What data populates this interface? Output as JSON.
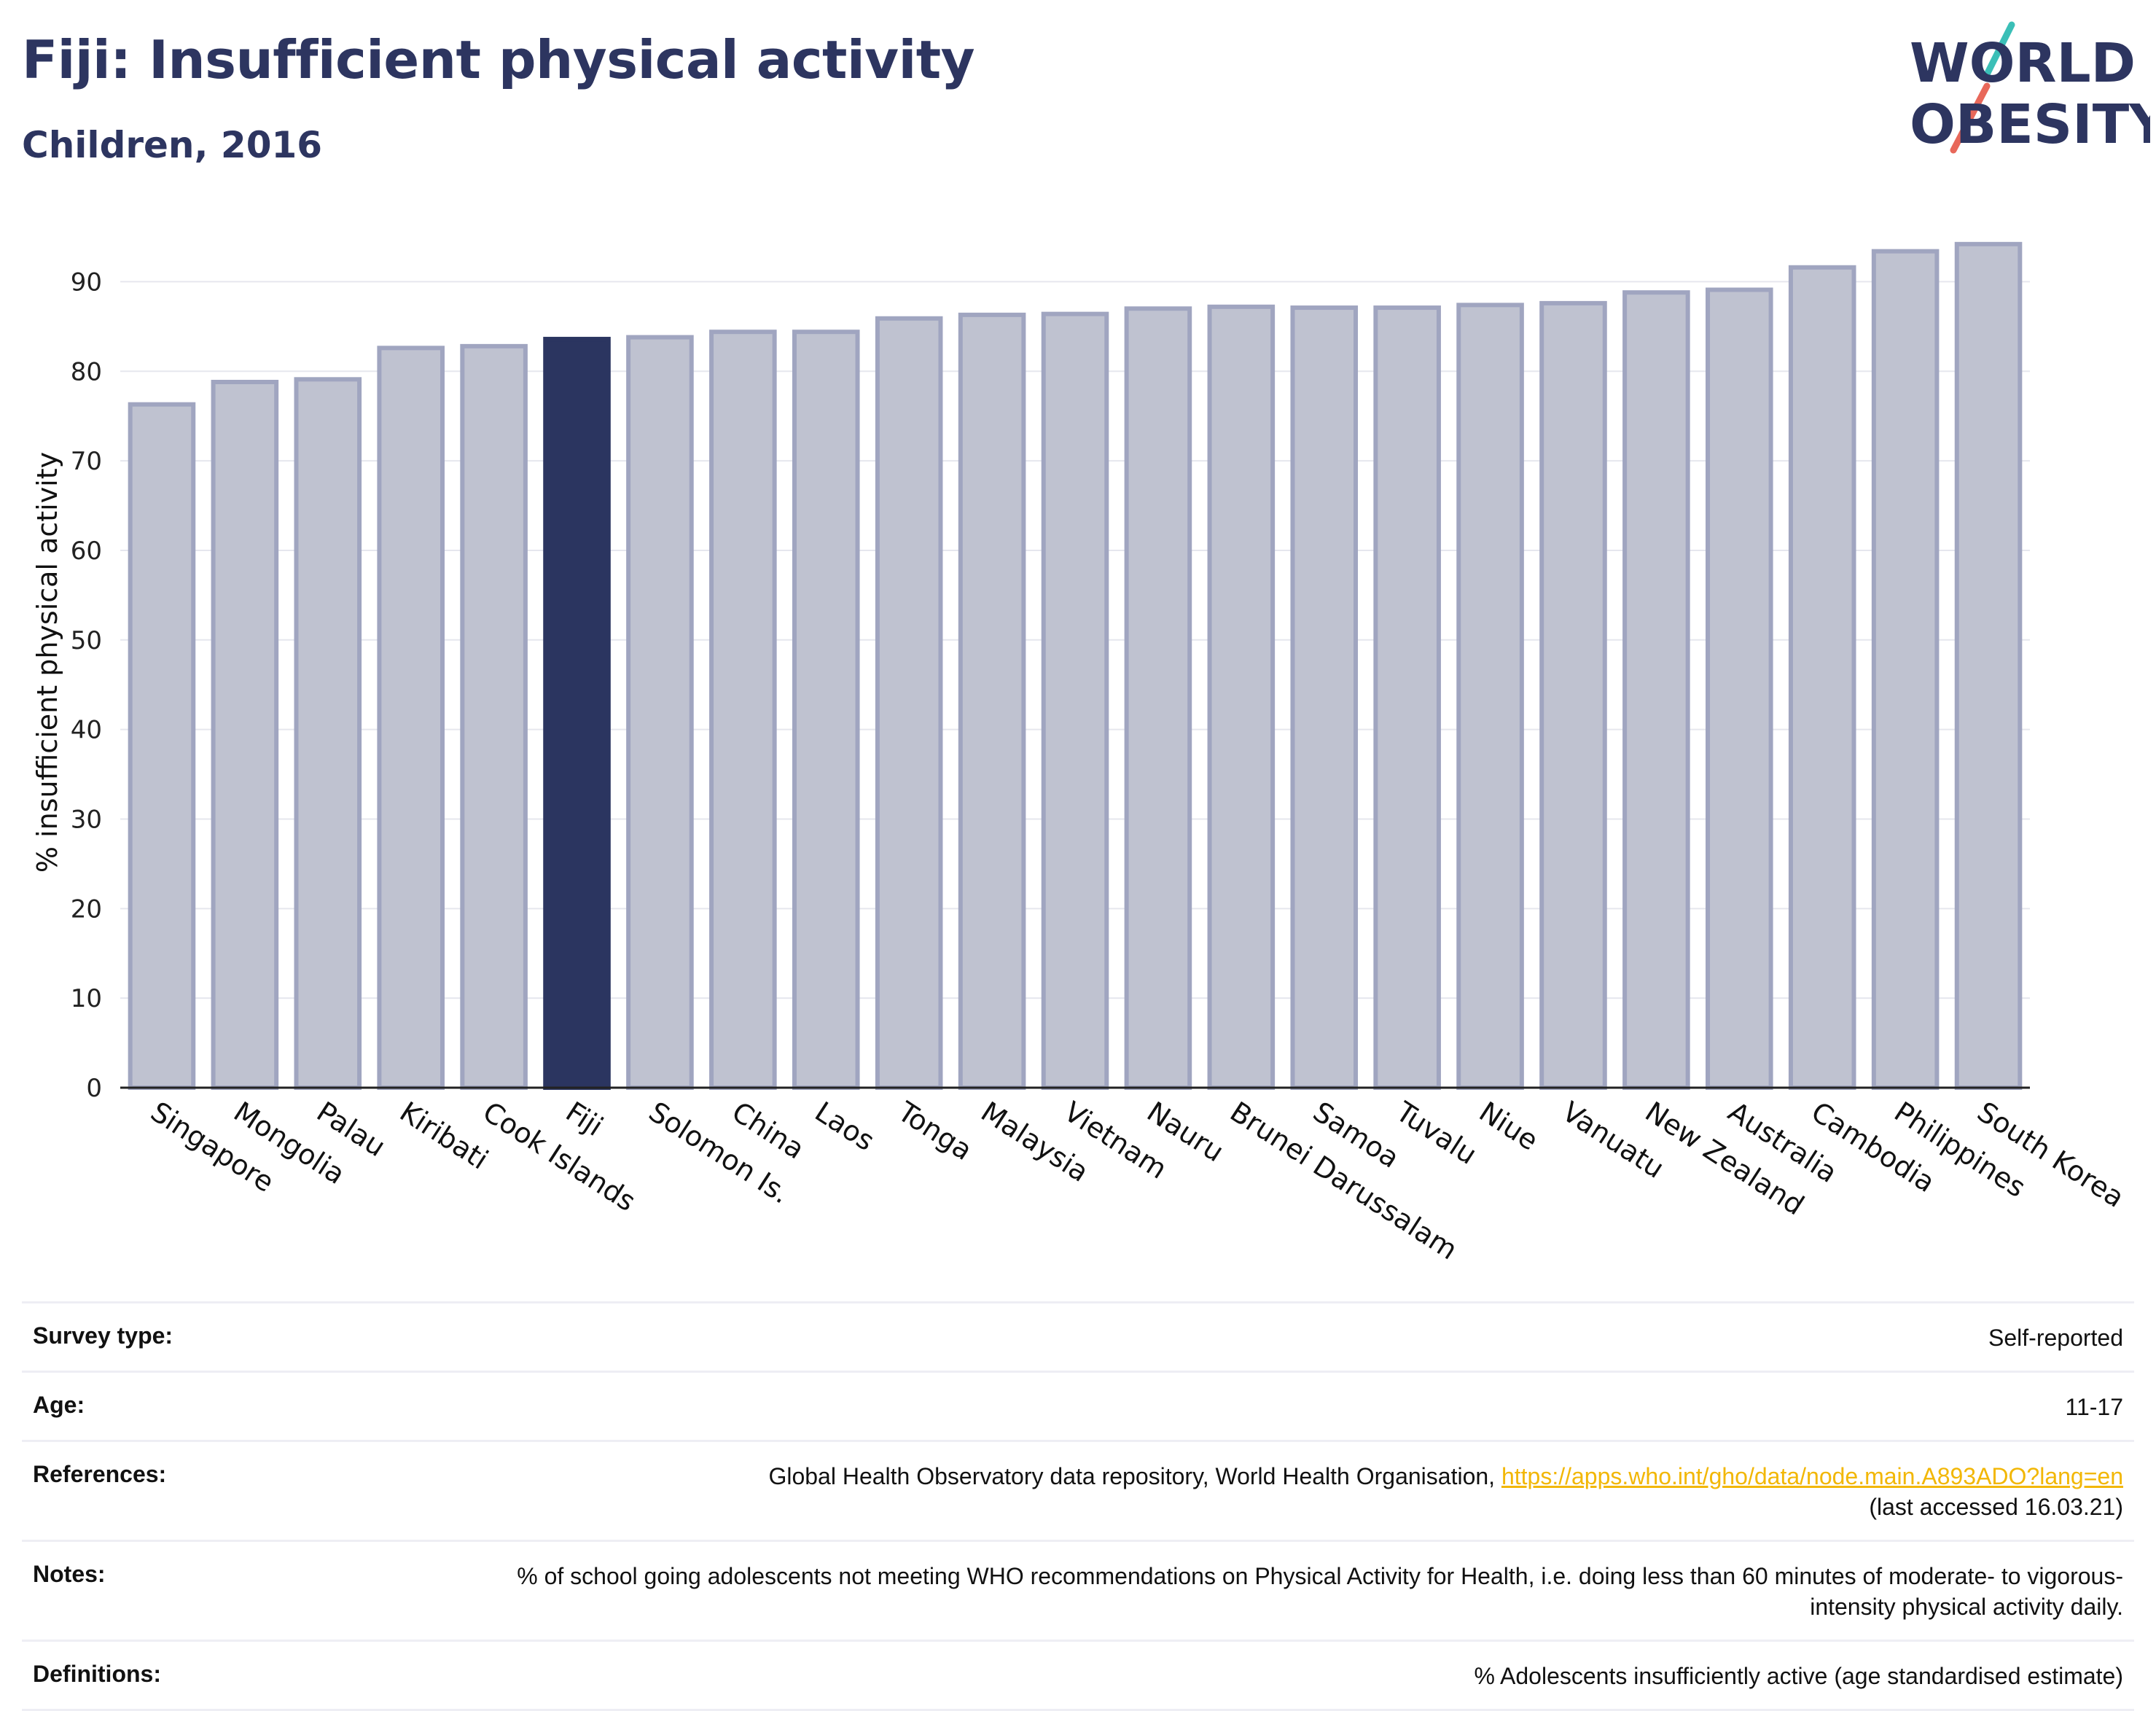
{
  "header": {
    "title": "Fiji: Insufficient physical activity",
    "subtitle": "Children, 2016"
  },
  "logo": {
    "line1": "WORLD",
    "line2": "OBESITY",
    "colors": {
      "text": "#2d3560",
      "teal": "#3bbfb7",
      "coral": "#e8685a"
    }
  },
  "chart_data": {
    "type": "bar",
    "ylabel": "% insufficient physical activity",
    "ylim": [
      0,
      95
    ],
    "yticks": [
      0,
      10,
      20,
      30,
      40,
      50,
      60,
      70,
      80,
      90
    ],
    "grid": true,
    "highlight": "Fiji",
    "categories": [
      "Singapore",
      "Mongolia",
      "Palau",
      "Kiribati",
      "Cook Islands",
      "Fiji",
      "Solomon Is.",
      "China",
      "Laos",
      "Tonga",
      "Malaysia",
      "Vietnam",
      "Nauru",
      "Brunei Darussalam",
      "Samoa",
      "Tuvalu",
      "Niue",
      "Vanuatu",
      "New Zealand",
      "Australia",
      "Cambodia",
      "Philippines",
      "South Korea"
    ],
    "values": [
      76.3,
      78.8,
      79.1,
      82.6,
      82.8,
      83.6,
      83.8,
      84.4,
      84.4,
      85.9,
      86.3,
      86.4,
      87.0,
      87.2,
      87.1,
      87.1,
      87.4,
      87.6,
      88.8,
      89.1,
      91.6,
      93.4,
      94.2
    ],
    "colors": {
      "bar": "#bfc2d0",
      "bar_border": "#a0a5c0",
      "highlight": "#2b3560",
      "grid": "#e6e7ee",
      "axis": "#222222"
    }
  },
  "info": [
    {
      "label": "Survey type:",
      "value": "Self-reported"
    },
    {
      "label": "Age:",
      "value": "11-17"
    },
    {
      "label": "References:",
      "value": "Global Health Observatory data repository, World Health Organisation, ",
      "link": "https://apps.who.int/gho/data/node.main.A893ADO?lang=en",
      "value_after": "(last accessed 16.03.21)"
    },
    {
      "label": "Notes:",
      "value": "% of school going adolescents not meeting WHO recommendations on Physical Activity for Health, i.e. doing less than 60 minutes of moderate- to vigorous-intensity physical activity daily."
    },
    {
      "label": "Definitions:",
      "value": "% Adolescents insufficiently active (age standardised estimate)"
    }
  ]
}
